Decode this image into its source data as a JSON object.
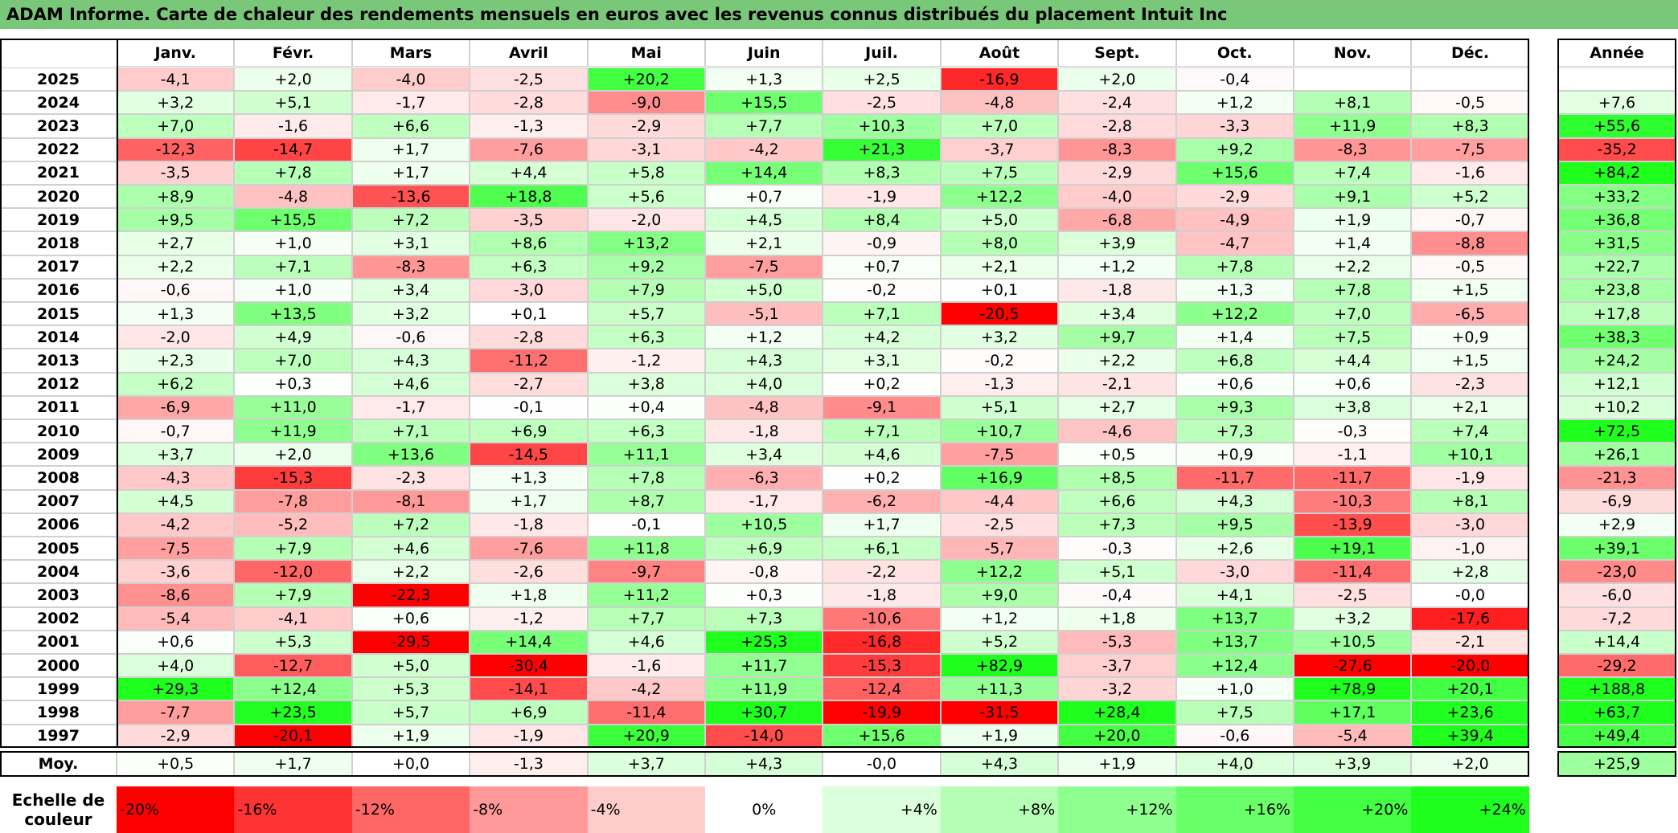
{
  "title": "ADAM Informe. Carte de chaleur des rendements mensuels en euros avec les revenus connus distribués du placement Intuit Inc",
  "table": {
    "months": [
      "Janv.",
      "Févr.",
      "Mars",
      "Avril",
      "Mai",
      "Juin",
      "Juil.",
      "Août",
      "Sept.",
      "Oct.",
      "Nov.",
      "Déc."
    ],
    "annual_header": "Année",
    "rows": [
      {
        "year": "2025",
        "months": [
          "-4,1",
          "+2,0",
          "-4,0",
          "-2,5",
          "+20,2",
          "+1,3",
          "+2,5",
          "-16,9",
          "+2,0",
          "-0,4",
          null,
          null
        ],
        "annual": null
      },
      {
        "year": "2024",
        "months": [
          "+3,2",
          "+5,1",
          "-1,7",
          "-2,8",
          "-9,0",
          "+15,5",
          "-2,5",
          "-4,8",
          "-2,4",
          "+1,2",
          "+8,1",
          "-0,5"
        ],
        "annual": "+7,6"
      },
      {
        "year": "2023",
        "months": [
          "+7,0",
          "-1,6",
          "+6,6",
          "-1,3",
          "-2,9",
          "+7,7",
          "+10,3",
          "+7,0",
          "-2,8",
          "-3,3",
          "+11,9",
          "+8,3"
        ],
        "annual": "+55,6"
      },
      {
        "year": "2022",
        "months": [
          "-12,3",
          "-14,7",
          "+1,7",
          "-7,6",
          "-3,1",
          "-4,2",
          "+21,3",
          "-3,7",
          "-8,3",
          "+9,2",
          "-8,3",
          "-7,5"
        ],
        "annual": "-35,2"
      },
      {
        "year": "2021",
        "months": [
          "-3,5",
          "+7,8",
          "+1,7",
          "+4,4",
          "+5,8",
          "+14,4",
          "+8,3",
          "+7,5",
          "-2,9",
          "+15,6",
          "+7,4",
          "-1,6"
        ],
        "annual": "+84,2"
      },
      {
        "year": "2020",
        "months": [
          "+8,9",
          "-4,8",
          "-13,6",
          "+18,8",
          "+5,6",
          "+0,7",
          "-1,9",
          "+12,2",
          "-4,0",
          "-2,9",
          "+9,1",
          "+5,2"
        ],
        "annual": "+33,2"
      },
      {
        "year": "2019",
        "months": [
          "+9,5",
          "+15,5",
          "+7,2",
          "-3,5",
          "-2,0",
          "+4,5",
          "+8,4",
          "+5,0",
          "-6,8",
          "-4,9",
          "+1,9",
          "-0,7"
        ],
        "annual": "+36,8"
      },
      {
        "year": "2018",
        "months": [
          "+2,7",
          "+1,0",
          "+3,1",
          "+8,6",
          "+13,2",
          "+2,1",
          "-0,9",
          "+8,0",
          "+3,9",
          "-4,7",
          "+1,4",
          "-8,8"
        ],
        "annual": "+31,5"
      },
      {
        "year": "2017",
        "months": [
          "+2,2",
          "+7,1",
          "-8,3",
          "+6,3",
          "+9,2",
          "-7,5",
          "+0,7",
          "+2,1",
          "+1,2",
          "+7,8",
          "+2,2",
          "-0,5"
        ],
        "annual": "+22,7"
      },
      {
        "year": "2016",
        "months": [
          "-0,6",
          "+1,0",
          "+3,4",
          "-3,0",
          "+7,9",
          "+5,0",
          "-0,2",
          "+0,1",
          "-1,8",
          "+1,3",
          "+7,8",
          "+1,5"
        ],
        "annual": "+23,8"
      },
      {
        "year": "2015",
        "months": [
          "+1,3",
          "+13,5",
          "+3,2",
          "+0,1",
          "+5,7",
          "-5,1",
          "+7,1",
          "-20,5",
          "+3,4",
          "+12,2",
          "+7,0",
          "-6,5"
        ],
        "annual": "+17,8"
      },
      {
        "year": "2014",
        "months": [
          "-2,0",
          "+4,9",
          "-0,6",
          "-2,8",
          "+6,3",
          "+1,2",
          "+4,2",
          "+3,2",
          "+9,7",
          "+1,4",
          "+7,5",
          "+0,9"
        ],
        "annual": "+38,3"
      },
      {
        "year": "2013",
        "months": [
          "+2,3",
          "+7,0",
          "+4,3",
          "-11,2",
          "-1,2",
          "+4,3",
          "+3,1",
          "-0,2",
          "+2,2",
          "+6,8",
          "+4,4",
          "+1,5"
        ],
        "annual": "+24,2"
      },
      {
        "year": "2012",
        "months": [
          "+6,2",
          "+0,3",
          "+4,6",
          "-2,7",
          "+3,8",
          "+4,0",
          "+0,2",
          "-1,3",
          "-2,1",
          "+0,6",
          "+0,6",
          "-2,3"
        ],
        "annual": "+12,1"
      },
      {
        "year": "2011",
        "months": [
          "-6,9",
          "+11,0",
          "-1,7",
          "-0,1",
          "+0,4",
          "-4,8",
          "-9,1",
          "+5,1",
          "+2,7",
          "+9,3",
          "+3,8",
          "+2,1"
        ],
        "annual": "+10,2"
      },
      {
        "year": "2010",
        "months": [
          "-0,7",
          "+11,9",
          "+7,1",
          "+6,9",
          "+6,3",
          "-1,8",
          "+7,1",
          "+10,7",
          "-4,6",
          "+7,3",
          "-0,3",
          "+7,4"
        ],
        "annual": "+72,5"
      },
      {
        "year": "2009",
        "months": [
          "+3,7",
          "+2,0",
          "+13,6",
          "-14,5",
          "+11,1",
          "+3,4",
          "+4,6",
          "-7,5",
          "+0,5",
          "+0,9",
          "-1,1",
          "+10,1"
        ],
        "annual": "+26,1"
      },
      {
        "year": "2008",
        "months": [
          "-4,3",
          "-15,3",
          "-2,3",
          "+1,3",
          "+7,8",
          "-6,3",
          "+0,2",
          "+16,9",
          "+8,5",
          "-11,7",
          "-11,7",
          "-1,9"
        ],
        "annual": "-21,3"
      },
      {
        "year": "2007",
        "months": [
          "+4,5",
          "-7,8",
          "-8,1",
          "+1,7",
          "+8,7",
          "-1,7",
          "-6,2",
          "-4,4",
          "+6,6",
          "+4,3",
          "-10,3",
          "+8,1"
        ],
        "annual": "-6,9"
      },
      {
        "year": "2006",
        "months": [
          "-4,2",
          "-5,2",
          "+7,2",
          "-1,8",
          "-0,1",
          "+10,5",
          "+1,7",
          "-2,5",
          "+7,3",
          "+9,5",
          "-13,9",
          "-3,0"
        ],
        "annual": "+2,9"
      },
      {
        "year": "2005",
        "months": [
          "-7,5",
          "+7,9",
          "+4,6",
          "-7,6",
          "+11,8",
          "+6,9",
          "+6,1",
          "-5,7",
          "-0,3",
          "+2,6",
          "+19,1",
          "-1,0"
        ],
        "annual": "+39,1"
      },
      {
        "year": "2004",
        "months": [
          "-3,6",
          "-12,0",
          "+2,2",
          "-2,6",
          "-9,7",
          "-0,8",
          "-2,2",
          "+12,2",
          "+5,1",
          "-3,0",
          "-11,4",
          "+2,8"
        ],
        "annual": "-23,0"
      },
      {
        "year": "2003",
        "months": [
          "-8,6",
          "+7,9",
          "-22,3",
          "+1,8",
          "+11,2",
          "+0,3",
          "-1,8",
          "+9,0",
          "-0,4",
          "+4,1",
          "-2,5",
          "-0,0"
        ],
        "annual": "-6,0"
      },
      {
        "year": "2002",
        "months": [
          "-5,4",
          "-4,1",
          "+0,6",
          "-1,2",
          "+7,7",
          "+7,3",
          "-10,6",
          "+1,2",
          "+1,8",
          "+13,7",
          "+3,2",
          "-17,6"
        ],
        "annual": "-7,2"
      },
      {
        "year": "2001",
        "months": [
          "+0,6",
          "+5,3",
          "-29,5",
          "+14,4",
          "+4,6",
          "+25,3",
          "-16,8",
          "+5,2",
          "-5,3",
          "+13,7",
          "+10,5",
          "-2,1"
        ],
        "annual": "+14,4"
      },
      {
        "year": "2000",
        "months": [
          "+4,0",
          "-12,7",
          "+5,0",
          "-30,4",
          "-1,6",
          "+11,7",
          "-15,3",
          "+82,9",
          "-3,7",
          "+12,4",
          "-27,6",
          "-20,0"
        ],
        "annual": "-29,2"
      },
      {
        "year": "1999",
        "months": [
          "+29,3",
          "+12,4",
          "+5,3",
          "-14,1",
          "-4,2",
          "+11,9",
          "-12,4",
          "+11,3",
          "-3,2",
          "+1,0",
          "+78,9",
          "+20,1"
        ],
        "annual": "+188,8"
      },
      {
        "year": "1998",
        "months": [
          "-7,7",
          "+23,5",
          "+5,7",
          "+6,9",
          "-11,4",
          "+30,7",
          "-19,9",
          "-31,5",
          "+28,4",
          "+7,5",
          "+17,1",
          "+23,6"
        ],
        "annual": "+63,7"
      },
      {
        "year": "1997",
        "months": [
          "-2,9",
          "-20,1",
          "+1,9",
          "-1,9",
          "+20,9",
          "-14,0",
          "+15,6",
          "+1,9",
          "+20,0",
          "-0,6",
          "-5,4",
          "+39,4"
        ],
        "annual": "+49,4"
      }
    ],
    "average": {
      "year": "Moy.",
      "months": [
        "+0,5",
        "+1,7",
        "+0,0",
        "-1,3",
        "+3,7",
        "+4,3",
        "-0,0",
        "+4,3",
        "+1,9",
        "+4,0",
        "+3,9",
        "+2,0"
      ],
      "annual": "+25,9"
    }
  },
  "legend": {
    "title": "Echelle de couleur",
    "labels": [
      "-20%",
      "-16%",
      "-12%",
      "-8%",
      "-4%",
      "0%",
      "+4%",
      "+8%",
      "+12%",
      "+16%",
      "+20%",
      "+24%"
    ]
  }
}
